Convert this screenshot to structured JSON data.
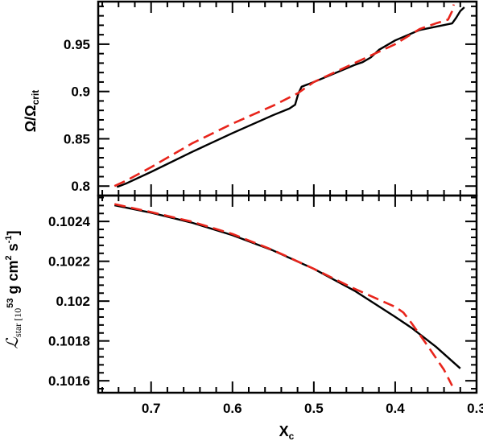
{
  "chart_data": [
    {
      "type": "line",
      "panel": "top",
      "ylabel": "Ω/Ω",
      "ylabel_sub": "crit",
      "xlim": [
        0.765,
        0.3
      ],
      "ylim": [
        0.79,
        0.995
      ],
      "x_reversed": true,
      "grid": false,
      "yticks": [
        0.8,
        0.85,
        0.9,
        0.95
      ],
      "ytick_labels": [
        "0.8",
        "0.85",
        "0.9",
        "0.95"
      ],
      "series": [
        {
          "color": "#000000",
          "dash": "solid",
          "points": [
            [
              0.742,
              0.799
            ],
            [
              0.73,
              0.803
            ],
            [
              0.7,
              0.815
            ],
            [
              0.65,
              0.836
            ],
            [
              0.6,
              0.856
            ],
            [
              0.55,
              0.875
            ],
            [
              0.53,
              0.882
            ],
            [
              0.523,
              0.886
            ],
            [
              0.519,
              0.898
            ],
            [
              0.515,
              0.905
            ],
            [
              0.5,
              0.91
            ],
            [
              0.45,
              0.928
            ],
            [
              0.44,
              0.931
            ],
            [
              0.43,
              0.936
            ],
            [
              0.42,
              0.944
            ],
            [
              0.4,
              0.954
            ],
            [
              0.37,
              0.965
            ],
            [
              0.33,
              0.972
            ],
            [
              0.325,
              0.978
            ],
            [
              0.32,
              0.985
            ],
            [
              0.315,
              0.989
            ]
          ]
        },
        {
          "color": "#e8241b",
          "dash": "dashed",
          "points": [
            [
              0.745,
              0.8
            ],
            [
              0.73,
              0.806
            ],
            [
              0.7,
              0.82
            ],
            [
              0.65,
              0.845
            ],
            [
              0.6,
              0.866
            ],
            [
              0.55,
              0.885
            ],
            [
              0.52,
              0.898
            ],
            [
              0.5,
              0.91
            ],
            [
              0.45,
              0.93
            ],
            [
              0.4,
              0.95
            ],
            [
              0.37,
              0.966
            ],
            [
              0.35,
              0.972
            ],
            [
              0.335,
              0.976
            ],
            [
              0.33,
              0.985
            ],
            [
              0.328,
              0.992
            ]
          ]
        }
      ]
    },
    {
      "type": "line",
      "panel": "bottom",
      "ylabel": "star [10",
      "ylabel_symbol": "ℒ",
      "ylabel_sup1": "53",
      "ylabel_mid": " g cm",
      "ylabel_sup2": "2",
      "ylabel_end": " s",
      "ylabel_sup3": "-1",
      "ylabel_close": "]",
      "xlabel": "X",
      "xlabel_sub": "c",
      "xlim": [
        0.765,
        0.3
      ],
      "ylim": [
        0.10154,
        0.10253
      ],
      "x_reversed": true,
      "grid": false,
      "xticks": [
        0.7,
        0.6,
        0.5,
        0.4,
        0.3
      ],
      "xtick_labels": [
        "0.7",
        "0.6",
        "0.5",
        "0.4",
        "0.3"
      ],
      "yticks": [
        0.1016,
        0.1018,
        0.102,
        0.1022,
        0.1024
      ],
      "ytick_labels": [
        "0.1016",
        "0.1018",
        "0.102",
        "0.1022",
        "0.1024"
      ],
      "series": [
        {
          "color": "#000000",
          "dash": "solid",
          "points": [
            [
              0.745,
              0.102481
            ],
            [
              0.7,
              0.102444
            ],
            [
              0.65,
              0.102394
            ],
            [
              0.6,
              0.102331
            ],
            [
              0.55,
              0.102254
            ],
            [
              0.5,
              0.102162
            ],
            [
              0.45,
              0.102052
            ],
            [
              0.4,
              0.101921
            ],
            [
              0.38,
              0.101866
            ],
            [
              0.35,
              0.101771
            ],
            [
              0.32,
              0.101662
            ]
          ]
        },
        {
          "color": "#e8241b",
          "dash": "dashed",
          "points": [
            [
              0.745,
              0.102487
            ],
            [
              0.7,
              0.102447
            ],
            [
              0.65,
              0.102399
            ],
            [
              0.6,
              0.102337
            ],
            [
              0.55,
              0.102256
            ],
            [
              0.5,
              0.102162
            ],
            [
              0.45,
              0.102062
            ],
            [
              0.4,
              0.101971
            ],
            [
              0.39,
              0.101943
            ],
            [
              0.38,
              0.10189
            ],
            [
              0.36,
              0.101775
            ],
            [
              0.34,
              0.101655
            ],
            [
              0.33,
              0.101575
            ]
          ]
        }
      ]
    }
  ]
}
